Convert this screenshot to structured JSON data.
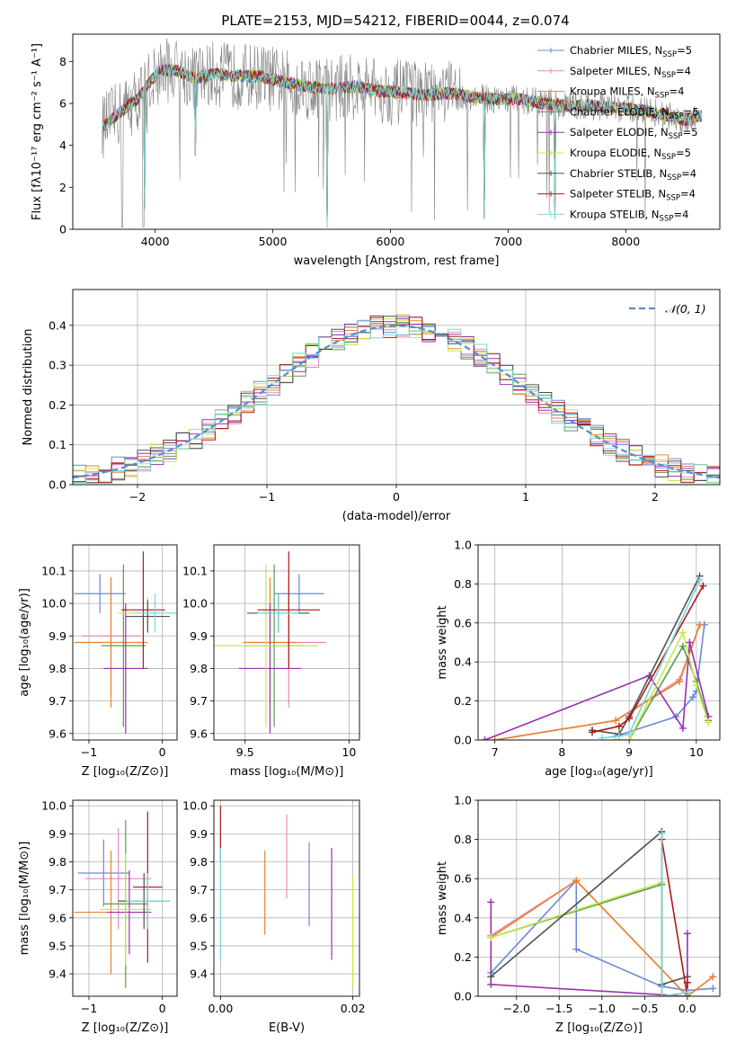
{
  "figure_title": "PLATE=2153, MJD=54212, FIBERID=0044, z=0.074",
  "colors": {
    "chabrier_miles": "#6a8ad8",
    "salpeter_miles": "#e88ab8",
    "kroupa_miles": "#e8832e",
    "chabrier_elodie": "#5a9a52",
    "salpeter_elodie": "#9a30b0",
    "kroupa_elodie": "#c8e84a",
    "chabrier_stelib": "#505050",
    "salpeter_stelib": "#b01818",
    "kroupa_stelib": "#78d8d8",
    "spectrum": "#808080",
    "normal_curve": "#5a8ad0"
  },
  "legend_models": [
    {
      "key": "chabrier_miles",
      "pre": "Chabrier MILES, N",
      "sub": "SSP",
      "post": "=5"
    },
    {
      "key": "salpeter_miles",
      "pre": "Salpeter MILES, N",
      "sub": "SSP",
      "post": "=4"
    },
    {
      "key": "kroupa_miles",
      "pre": "Kroupa MILES, N",
      "sub": "SSP",
      "post": "=4"
    },
    {
      "key": "chabrier_elodie",
      "pre": "Chabrier ELODIE, N",
      "sub": "SSP",
      "post": "=5"
    },
    {
      "key": "salpeter_elodie",
      "pre": "Salpeter ELODIE, N",
      "sub": "SSP",
      "post": "=5"
    },
    {
      "key": "kroupa_elodie",
      "pre": "Kroupa ELODIE, N",
      "sub": "SSP",
      "post": "=5"
    },
    {
      "key": "chabrier_stelib",
      "pre": "Chabrier STELIB, N",
      "sub": "SSP",
      "post": "=4"
    },
    {
      "key": "salpeter_stelib",
      "pre": "Salpeter STELIB, N",
      "sub": "SSP",
      "post": "=4"
    },
    {
      "key": "kroupa_stelib",
      "pre": "Kroupa STELIB, N",
      "sub": "SSP",
      "post": "=4"
    }
  ],
  "chart_data": [
    {
      "id": "spectrum",
      "type": "line",
      "xlabel": "wavelength [Angstrom, rest frame]",
      "ylabel": "Flux [fλ10⁻¹⁷ erg cm⁻² s⁻¹ A⁻¹]",
      "xlim": [
        3300,
        8800
      ],
      "ylim": [
        0,
        9.3
      ],
      "xticks": [
        4000,
        5000,
        6000,
        7000,
        8000
      ],
      "yticks": [
        0,
        2,
        4,
        6,
        8
      ],
      "continuum": [
        [
          3550,
          4.9
        ],
        [
          3650,
          5.3
        ],
        [
          3750,
          5.8
        ],
        [
          3850,
          6.2
        ],
        [
          3950,
          7.0
        ],
        [
          4050,
          7.6
        ],
        [
          4150,
          7.6
        ],
        [
          4250,
          7.4
        ],
        [
          4350,
          7.2
        ],
        [
          4500,
          7.4
        ],
        [
          4700,
          7.3
        ],
        [
          4900,
          7.3
        ],
        [
          5100,
          7.0
        ],
        [
          5300,
          6.8
        ],
        [
          5500,
          6.7
        ],
        [
          5700,
          6.8
        ],
        [
          5900,
          6.6
        ],
        [
          6100,
          6.5
        ],
        [
          6300,
          6.4
        ],
        [
          6500,
          6.5
        ],
        [
          6700,
          6.3
        ],
        [
          6900,
          6.2
        ],
        [
          7100,
          6.2
        ],
        [
          7300,
          6.0
        ],
        [
          7500,
          5.9
        ],
        [
          7700,
          5.9
        ],
        [
          7900,
          5.8
        ],
        [
          8100,
          5.7
        ],
        [
          8300,
          5.5
        ],
        [
          8500,
          5.2
        ],
        [
          8600,
          5.4
        ]
      ],
      "spectrum_range": [
        3550,
        8600
      ],
      "model_range": [
        3550,
        8650
      ]
    },
    {
      "id": "residuals",
      "type": "histogram",
      "xlabel": "(data-model)/error",
      "ylabel": "Normed distribution",
      "xlim": [
        -2.5,
        2.5
      ],
      "ylim": [
        0,
        0.49
      ],
      "xticks": [
        -2,
        -1,
        0,
        1,
        2
      ],
      "yticks": [
        0.0,
        0.1,
        0.2,
        0.3,
        0.4
      ],
      "bin_width": 0.1,
      "legend": "𝒩(0, 1)"
    },
    {
      "id": "age_vs_Z",
      "type": "errorbar",
      "xlabel": "Z [log₁₀(Z/Z⊙)]",
      "ylabel": "age  [log₁₀(age/yr)]",
      "xlim": [
        -1.22,
        0.2
      ],
      "ylim": [
        9.58,
        10.18
      ],
      "xticks": [
        -1,
        0
      ],
      "yticks": [
        9.6,
        9.7,
        9.8,
        9.9,
        10.0,
        10.1
      ],
      "points": [
        {
          "key": "chabrier_miles",
          "x": -0.85,
          "xerr": 0.35,
          "y": 10.03,
          "yerr": 0.06
        },
        {
          "key": "salpeter_miles",
          "x": -0.7,
          "xerr": 0.4,
          "y": 9.9,
          "yerr": 0.18
        },
        {
          "key": "kroupa_miles",
          "x": -0.7,
          "xerr": 0.5,
          "y": 9.88,
          "yerr": 0.2
        },
        {
          "key": "chabrier_elodie",
          "x": -0.53,
          "xerr": 0.3,
          "y": 9.87,
          "yerr": 0.25
        },
        {
          "key": "salpeter_elodie",
          "x": -0.5,
          "xerr": 0.3,
          "y": 9.8,
          "yerr": 0.2
        },
        {
          "key": "kroupa_elodie",
          "x": -0.2,
          "xerr": 0.4,
          "y": 9.97,
          "yerr": 0.05
        },
        {
          "key": "chabrier_stelib",
          "x": -0.2,
          "xerr": 0.3,
          "y": 9.96,
          "yerr": 0.05
        },
        {
          "key": "salpeter_stelib",
          "x": -0.26,
          "xerr": 0.3,
          "y": 9.98,
          "yerr": 0.18
        },
        {
          "key": "kroupa_stelib",
          "x": -0.1,
          "xerr": 0.3,
          "y": 9.97,
          "yerr": 0.06
        }
      ]
    },
    {
      "id": "age_vs_mass",
      "type": "errorbar",
      "xlabel": "mass [log₁₀(M/M⊙)]",
      "ylabel": "",
      "xlim": [
        9.35,
        10.05
      ],
      "ylim": [
        9.58,
        10.18
      ],
      "xticks": [
        9.5,
        10.0
      ],
      "yticks": [
        9.6,
        9.7,
        9.8,
        9.9,
        10.0,
        10.1
      ],
      "points": [
        {
          "key": "chabrier_miles",
          "x": 9.76,
          "xerr": 0.12,
          "y": 10.03,
          "yerr": 0.06
        },
        {
          "key": "salpeter_miles",
          "x": 9.71,
          "xerr": 0.18,
          "y": 9.88,
          "yerr": 0.2
        },
        {
          "key": "kroupa_miles",
          "x": 9.62,
          "xerr": 0.13,
          "y": 9.88,
          "yerr": 0.2
        },
        {
          "key": "chabrier_elodie",
          "x": 9.64,
          "xerr": 0.15,
          "y": 9.87,
          "yerr": 0.25
        },
        {
          "key": "salpeter_elodie",
          "x": 9.62,
          "xerr": 0.15,
          "y": 9.8,
          "yerr": 0.2
        },
        {
          "key": "kroupa_elodie",
          "x": 9.6,
          "xerr": 0.25,
          "y": 9.87,
          "yerr": 0.25
        },
        {
          "key": "chabrier_stelib",
          "x": 9.66,
          "xerr": 0.15,
          "y": 9.97,
          "yerr": 0.06
        },
        {
          "key": "salpeter_stelib",
          "x": 9.71,
          "xerr": 0.15,
          "y": 9.98,
          "yerr": 0.18
        },
        {
          "key": "kroupa_stelib",
          "x": 9.66,
          "xerr": 0.1,
          "y": 9.97,
          "yerr": 0.06
        }
      ]
    },
    {
      "id": "massweight_vs_age",
      "type": "line",
      "xlabel": "age  [log₁₀(age/yr)]",
      "ylabel": "mass weight",
      "xlim": [
        6.75,
        10.35
      ],
      "ylim": [
        0,
        1.0
      ],
      "xticks": [
        7,
        8,
        9,
        10
      ],
      "yticks": [
        0.0,
        0.2,
        0.4,
        0.6,
        0.8,
        1.0
      ],
      "series": [
        {
          "key": "chabrier_miles",
          "x": [
            8.8,
            9.7,
            9.95,
            10.0,
            10.12
          ],
          "y": [
            0.02,
            0.12,
            0.22,
            0.25,
            0.59
          ]
        },
        {
          "key": "salpeter_miles",
          "x": [
            7.0,
            8.8,
            9.75,
            10.05
          ],
          "y": [
            0.0,
            0.1,
            0.31,
            0.59
          ]
        },
        {
          "key": "kroupa_miles",
          "x": [
            7.0,
            8.8,
            9.75,
            10.05
          ],
          "y": [
            0.0,
            0.1,
            0.3,
            0.59
          ]
        },
        {
          "key": "chabrier_elodie",
          "x": [
            8.8,
            9.0,
            9.8,
            10.0,
            10.18
          ],
          "y": [
            0.0,
            0.0,
            0.48,
            0.3,
            0.1
          ]
        },
        {
          "key": "salpeter_elodie",
          "x": [
            6.85,
            9.3,
            9.8,
            9.9,
            10.18
          ],
          "y": [
            0.0,
            0.33,
            0.06,
            0.5,
            0.12
          ]
        },
        {
          "key": "kroupa_elodie",
          "x": [
            8.8,
            9.0,
            9.8,
            10.0,
            10.18
          ],
          "y": [
            0.0,
            0.0,
            0.55,
            0.28,
            0.09
          ]
        },
        {
          "key": "chabrier_stelib",
          "x": [
            8.45,
            8.85,
            9.0,
            10.05
          ],
          "y": [
            0.05,
            0.03,
            0.12,
            0.84
          ]
        },
        {
          "key": "salpeter_stelib",
          "x": [
            8.45,
            8.85,
            9.0,
            10.1
          ],
          "y": [
            0.04,
            0.07,
            0.11,
            0.79
          ]
        },
        {
          "key": "kroupa_stelib",
          "x": [
            8.6,
            8.85,
            9.0,
            10.05
          ],
          "y": [
            0.01,
            0.02,
            0.03,
            0.82
          ]
        }
      ]
    },
    {
      "id": "mass_vs_Z",
      "type": "errorbar",
      "xlabel": "Z [log₁₀(Z/Z⊙)]",
      "ylabel": "mass [log₁₀(M/M⊙)]",
      "xlim": [
        -1.22,
        0.2
      ],
      "ylim": [
        9.32,
        10.02
      ],
      "xticks": [
        -1,
        0
      ],
      "yticks": [
        9.4,
        9.5,
        9.6,
        9.7,
        9.8,
        9.9,
        10.0
      ],
      "points": [
        {
          "key": "chabrier_miles",
          "x": -0.8,
          "xerr": 0.35,
          "y": 9.76,
          "yerr": 0.12
        },
        {
          "key": "salpeter_miles",
          "x": -0.6,
          "xerr": 0.45,
          "y": 9.74,
          "yerr": 0.18
        },
        {
          "key": "kroupa_miles",
          "x": -0.7,
          "xerr": 0.5,
          "y": 9.62,
          "yerr": 0.22
        },
        {
          "key": "chabrier_elodie",
          "x": -0.5,
          "xerr": 0.3,
          "y": 9.65,
          "yerr": 0.3
        },
        {
          "key": "salpeter_elodie",
          "x": -0.45,
          "xerr": 0.3,
          "y": 9.62,
          "yerr": 0.15
        },
        {
          "key": "kroupa_elodie",
          "x": -0.5,
          "xerr": 0.35,
          "y": 9.63,
          "yerr": 0.2
        },
        {
          "key": "chabrier_stelib",
          "x": -0.25,
          "xerr": 0.35,
          "y": 9.66,
          "yerr": 0.1
        },
        {
          "key": "salpeter_stelib",
          "x": -0.2,
          "xerr": 0.2,
          "y": 9.71,
          "yerr": 0.27
        },
        {
          "key": "kroupa_stelib",
          "x": -0.2,
          "xerr": 0.3,
          "y": 9.66,
          "yerr": 0.1
        }
      ]
    },
    {
      "id": "mass_vs_ebv",
      "type": "errorbar",
      "xlabel": "E(B-V)",
      "ylabel": "",
      "xlim": [
        -0.001,
        0.021
      ],
      "ylim": [
        9.32,
        10.02
      ],
      "xticks": [
        0.0,
        0.02
      ],
      "xtick_labels": [
        "0.00",
        "0.02"
      ],
      "yticks": [
        9.4,
        9.5,
        9.6,
        9.7,
        9.8,
        9.9,
        10.0
      ],
      "points": [
        {
          "key": "salpeter_stelib",
          "x": 0.0,
          "xerr": 0,
          "y": 9.9,
          "yerr": 0.1
        },
        {
          "key": "kroupa_stelib",
          "x": 0.0,
          "xerr": 0,
          "y": 9.65,
          "yerr": 0.2
        },
        {
          "key": "kroupa_miles",
          "x": 0.0067,
          "xerr": 0,
          "y": 9.69,
          "yerr": 0.15
        },
        {
          "key": "salpeter_miles",
          "x": 0.01,
          "xerr": 0,
          "y": 9.82,
          "yerr": 0.15
        },
        {
          "key": "chabrier_miles",
          "x": 0.0134,
          "xerr": 0,
          "y": 9.72,
          "yerr": 0.15
        },
        {
          "key": "salpeter_elodie",
          "x": 0.0168,
          "xerr": 0,
          "y": 9.65,
          "yerr": 0.2
        },
        {
          "key": "kroupa_elodie",
          "x": 0.02,
          "xerr": 0,
          "y": 9.55,
          "yerr": 0.2
        }
      ]
    },
    {
      "id": "massweight_vs_Z",
      "type": "line",
      "xlabel": "Z [log₁₀(Z/Z⊙)]",
      "ylabel": "mass weight",
      "xlim": [
        -2.45,
        0.38
      ],
      "ylim": [
        0,
        1.0
      ],
      "xticks": [
        -2.0,
        -1.5,
        -1.0,
        -0.5,
        0.0
      ],
      "xtick_labels": [
        "−2.0",
        "−1.5",
        "−1.0",
        "−0.5",
        "0.0"
      ],
      "yticks": [
        0.0,
        0.2,
        0.4,
        0.6,
        0.8,
        1.0
      ],
      "series": [
        {
          "key": "chabrier_miles",
          "x": [
            -2.3,
            -1.3,
            -1.3,
            -0.3,
            0.0,
            0.3
          ],
          "y": [
            0.12,
            0.59,
            0.24,
            0.05,
            0.03,
            0.04
          ]
        },
        {
          "key": "salpeter_miles",
          "x": [
            -2.3,
            -1.3,
            0.0,
            0.3
          ],
          "y": [
            0.31,
            0.59,
            0.0,
            0.1
          ]
        },
        {
          "key": "kroupa_miles",
          "x": [
            -2.3,
            -1.3,
            0.0,
            0.3
          ],
          "y": [
            0.3,
            0.59,
            0.0,
            0.1
          ]
        },
        {
          "key": "chabrier_elodie",
          "x": [
            -2.3,
            -0.3,
            -0.3,
            0.0
          ],
          "y": [
            0.3,
            0.57,
            0.0,
            0.0
          ]
        },
        {
          "key": "salpeter_elodie",
          "x": [
            -2.3,
            -2.3,
            0.0,
            0.0
          ],
          "y": [
            0.48,
            0.06,
            0.0,
            0.32
          ]
        },
        {
          "key": "kroupa_elodie",
          "x": [
            -2.3,
            -0.3,
            -0.3,
            0.0
          ],
          "y": [
            0.3,
            0.58,
            0.0,
            0.0
          ]
        },
        {
          "key": "chabrier_stelib",
          "x": [
            -2.3,
            -0.3,
            -0.3,
            0.0
          ],
          "y": [
            0.1,
            0.84,
            0.06,
            0.1
          ]
        },
        {
          "key": "salpeter_stelib",
          "x": [
            -0.3,
            0.0,
            0.0
          ],
          "y": [
            0.8,
            0.0,
            0.07
          ]
        },
        {
          "key": "kroupa_stelib",
          "x": [
            -0.3,
            -0.3,
            0.0
          ],
          "y": [
            0.83,
            0.0,
            0.02
          ]
        }
      ]
    }
  ]
}
